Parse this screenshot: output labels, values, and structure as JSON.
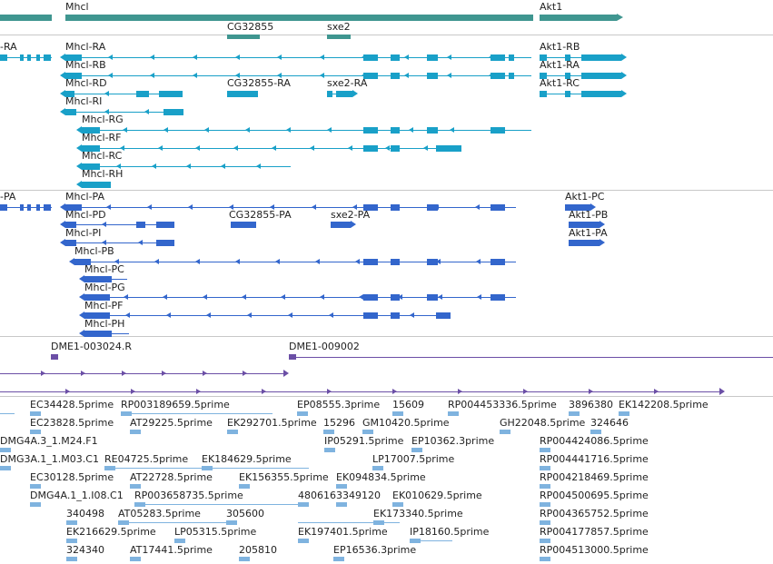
{
  "colors": {
    "gene": "#3f9690",
    "transcript": "#19a0c8",
    "protein": "#3366cc",
    "cds": "#6b4fa6",
    "est": "#7fb3df",
    "separator": "#c8c8c8"
  },
  "tracks": {
    "genes": [
      {
        "label": "Mhcl"
      },
      {
        "label": "Akt1"
      },
      {
        "label": "CG32855"
      },
      {
        "label": "sxe2"
      }
    ],
    "transcripts": [
      {
        "label": "-RA"
      },
      {
        "label": "Mhcl-RA"
      },
      {
        "label": "Akt1-RB"
      },
      {
        "label": "Mhcl-RB"
      },
      {
        "label": "Akt1-RA"
      },
      {
        "label": "Mhcl-RD"
      },
      {
        "label": "CG32855-RA"
      },
      {
        "label": "sxe2-RA"
      },
      {
        "label": "Akt1-RC"
      },
      {
        "label": "Mhcl-RI"
      },
      {
        "label": "Mhcl-RG"
      },
      {
        "label": "Mhcl-RF"
      },
      {
        "label": "Mhcl-RC"
      },
      {
        "label": "Mhcl-RH"
      }
    ],
    "proteins": [
      {
        "label": "-PA"
      },
      {
        "label": "Mhcl-PA"
      },
      {
        "label": "Akt1-PC"
      },
      {
        "label": "Mhcl-PD"
      },
      {
        "label": "CG32855-PA"
      },
      {
        "label": "sxe2-PA"
      },
      {
        "label": "Akt1-PB"
      },
      {
        "label": "Mhcl-PI"
      },
      {
        "label": "Akt1-PA"
      },
      {
        "label": "Mhcl-PB"
      },
      {
        "label": "Mhcl-PC"
      },
      {
        "label": "Mhcl-PG"
      },
      {
        "label": "Mhcl-PF"
      },
      {
        "label": "Mhcl-PH"
      }
    ],
    "cds": [
      {
        "label": "DME1-003024.R"
      },
      {
        "label": "DME1-009002"
      }
    ],
    "ests": [
      {
        "label": "EC34428.5prime"
      },
      {
        "label": "RP003189659.5prime"
      },
      {
        "label": "EP08555.3prime"
      },
      {
        "label": "15609"
      },
      {
        "label": "RP004453336.5prime"
      },
      {
        "label": "3896380"
      },
      {
        "label": "EK142208.5prime"
      },
      {
        "label": "EC23828.5prime"
      },
      {
        "label": "AT29225.5prime"
      },
      {
        "label": "EK292701.5prime"
      },
      {
        "label": "15296"
      },
      {
        "label": "GM10420.5prime"
      },
      {
        "label": "GH22048.5prime"
      },
      {
        "label": "324646"
      },
      {
        "label": "DMG4A.3_1.M24.F1"
      },
      {
        "label": "IP05291.5prime"
      },
      {
        "label": "EP10362.3prime"
      },
      {
        "label": "RP004424086.5prime"
      },
      {
        "label": "DMG3A.1_1.M03.C1"
      },
      {
        "label": "RE04725.5prime"
      },
      {
        "label": "EK184629.5prime"
      },
      {
        "label": "LP17007.5prime"
      },
      {
        "label": "RP004441716.5prime"
      },
      {
        "label": "EC30128.5prime"
      },
      {
        "label": "AT22728.5prime"
      },
      {
        "label": "EK156355.5prime"
      },
      {
        "label": "EK094834.5prime"
      },
      {
        "label": "RP004218469.5prime"
      },
      {
        "label": "DMG4A.1_1.I08.C1"
      },
      {
        "label": "RP003658735.5prime"
      },
      {
        "label": "480616"
      },
      {
        "label": "3349120"
      },
      {
        "label": "EK010629.5prime"
      },
      {
        "label": "RP004500695.5prime"
      },
      {
        "label": "340498"
      },
      {
        "label": "AT05283.5prime"
      },
      {
        "label": "305600"
      },
      {
        "label": "EK173340.5prime"
      },
      {
        "label": "RP004365752.5prime"
      },
      {
        "label": "EK216629.5prime"
      },
      {
        "label": "LP05315.5prime"
      },
      {
        "label": "EK197401.5prime"
      },
      {
        "label": "IP18160.5prime"
      },
      {
        "label": "RP004177857.5prime"
      },
      {
        "label": "324340"
      },
      {
        "label": "AT17441.5prime"
      },
      {
        "label": "205810"
      },
      {
        "label": "EP16536.3prime"
      },
      {
        "label": "RP004513000.5prime"
      }
    ]
  }
}
